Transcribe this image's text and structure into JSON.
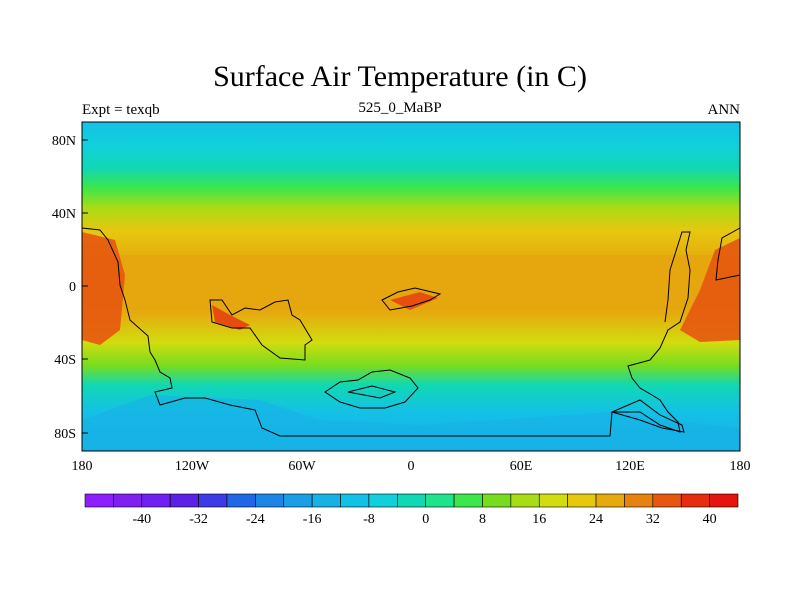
{
  "title": "Surface Air Temperature (in C)",
  "left_label": "Expt = texqb",
  "center_label": "525_0_MaBP",
  "right_label": "ANN",
  "lat_ticks": [
    "80N",
    "40N",
    "0",
    "40S",
    "80S"
  ],
  "lon_ticks": [
    "180",
    "120W",
    "60W",
    "0",
    "60E",
    "120E",
    "180"
  ],
  "colorbar": {
    "labels": [
      "-40",
      "-32",
      "-24",
      "-16",
      "-8",
      "0",
      "8",
      "16",
      "24",
      "32",
      "40"
    ],
    "colors": [
      "#8e1eff",
      "#7f1ff0",
      "#7020f0",
      "#5b22e6",
      "#3d3be6",
      "#2166e6",
      "#1d85e6",
      "#1a9ee6",
      "#18b1e6",
      "#14c1e6",
      "#11d0dc",
      "#10d8b4",
      "#1ee28c",
      "#3ce64c",
      "#78dc1e",
      "#a8dc14",
      "#d2dc0f",
      "#e6c80f",
      "#e6aa0f",
      "#e6820f",
      "#e6580f",
      "#e62d0f",
      "#e6140f"
    ]
  }
}
